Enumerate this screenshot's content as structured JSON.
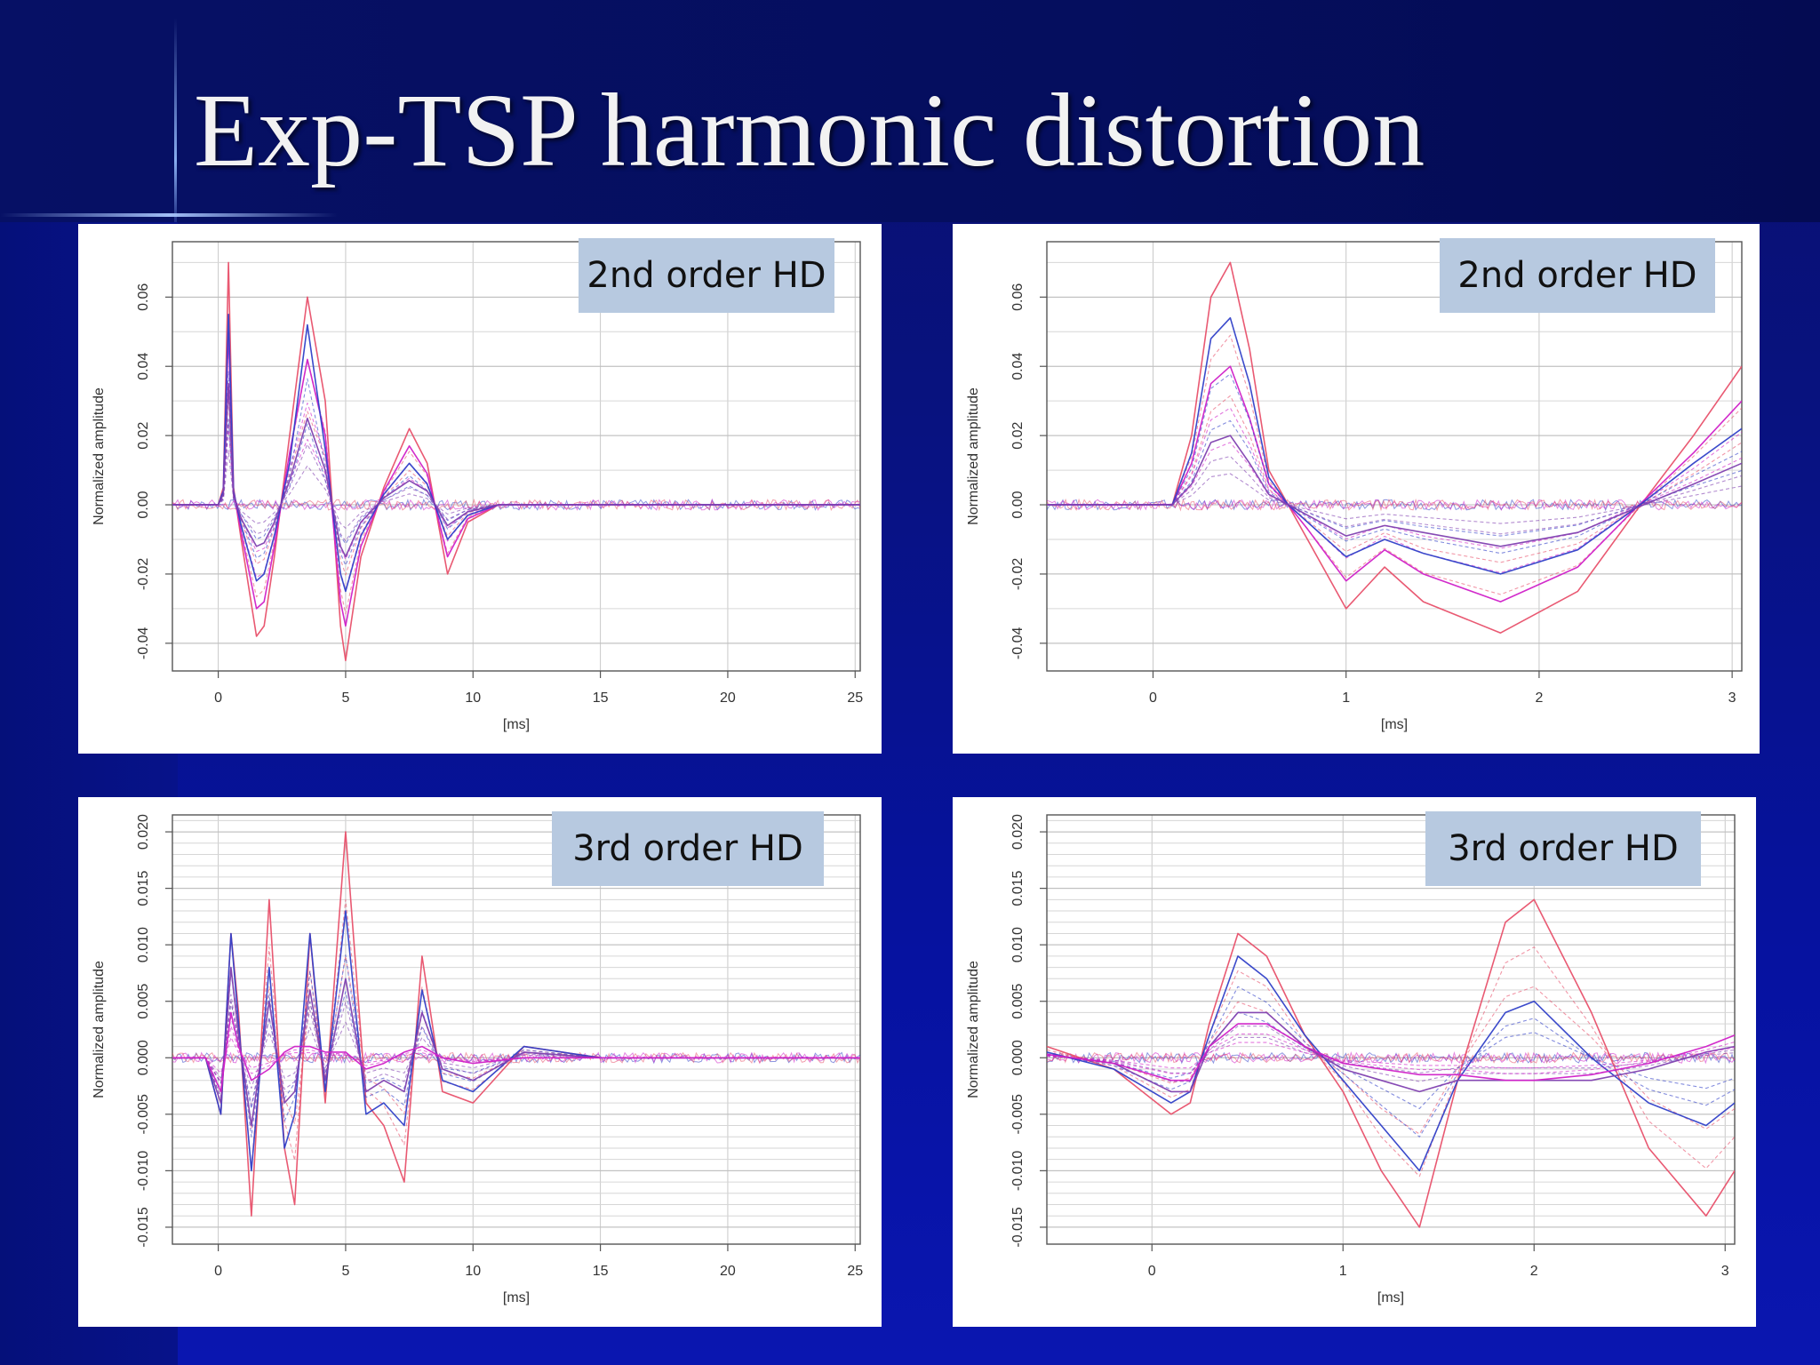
{
  "slide": {
    "title": "Exp-TSP harmonic distortion",
    "colors": {
      "background": "#0812a0",
      "title_text": "#f2f2f2",
      "badge": "#b7c9e0",
      "series_red": "#e8506a",
      "series_magenta": "#d020c8",
      "series_blue": "#3040c8",
      "series_purple": "#8040b0"
    }
  },
  "chart_data": [
    {
      "type": "line",
      "badge": "2nd order HD",
      "xlabel": "[ms]",
      "ylabel": "Normalized amplitude",
      "xlim": [
        -1.8,
        25.2
      ],
      "ylim": [
        -0.048,
        0.076
      ],
      "xticks": [
        0,
        5,
        10,
        15,
        20,
        25
      ],
      "yticks": [
        -0.04,
        -0.02,
        0.0,
        0.02,
        0.04,
        0.06
      ],
      "xtick_labels": [
        "0",
        "5",
        "10",
        "15",
        "20",
        "25"
      ],
      "ytick_labels": [
        "-0.04",
        "-0.02",
        "0.00",
        "0.02",
        "0.04",
        "0.06"
      ],
      "grid": true,
      "series": [
        {
          "color": "#e8506a",
          "x": [
            -1.8,
            0,
            0.2,
            0.4,
            0.6,
            0.9,
            1.5,
            1.8,
            2.2,
            2.8,
            3.5,
            4.2,
            4.8,
            5.0,
            5.6,
            6.5,
            7.5,
            8.2,
            9.0,
            9.8,
            11,
            25.2
          ],
          "y": [
            0,
            0,
            0.005,
            0.07,
            0.005,
            -0.01,
            -0.038,
            -0.035,
            -0.015,
            0.02,
            0.06,
            0.03,
            -0.035,
            -0.045,
            -0.015,
            0.005,
            0.022,
            0.012,
            -0.02,
            -0.005,
            0,
            0
          ]
        },
        {
          "color": "#d020c8",
          "x": [
            -1.8,
            0,
            0.2,
            0.4,
            0.6,
            0.9,
            1.5,
            1.8,
            2.2,
            2.8,
            3.5,
            4.2,
            4.8,
            5.0,
            5.6,
            6.5,
            7.5,
            8.2,
            9.0,
            9.8,
            11,
            25.2
          ],
          "y": [
            0,
            0,
            0.004,
            0.05,
            0.004,
            -0.008,
            -0.03,
            -0.028,
            -0.012,
            0.015,
            0.042,
            0.02,
            -0.028,
            -0.035,
            -0.012,
            0.004,
            0.017,
            0.009,
            -0.015,
            -0.004,
            0,
            0
          ]
        },
        {
          "color": "#3040c8",
          "x": [
            -1.8,
            0,
            0.2,
            0.4,
            0.6,
            0.9,
            1.5,
            1.8,
            2.2,
            2.8,
            3.5,
            4.2,
            4.8,
            5.0,
            5.6,
            6.5,
            7.5,
            8.2,
            9.0,
            9.8,
            11,
            25.2
          ],
          "y": [
            0,
            0,
            0.004,
            0.055,
            0.004,
            -0.006,
            -0.022,
            -0.02,
            -0.009,
            0.012,
            0.052,
            0.016,
            -0.02,
            -0.025,
            -0.009,
            0.003,
            0.012,
            0.006,
            -0.01,
            -0.003,
            0,
            0
          ]
        },
        {
          "color": "#8040b0",
          "x": [
            -1.8,
            0,
            0.2,
            0.4,
            0.6,
            0.9,
            1.5,
            1.8,
            2.2,
            2.8,
            3.5,
            4.2,
            4.8,
            5.0,
            5.6,
            6.5,
            7.5,
            8.2,
            9.0,
            9.8,
            11,
            25.2
          ],
          "y": [
            0,
            0,
            0.003,
            0.035,
            0.003,
            -0.004,
            -0.012,
            -0.011,
            -0.005,
            0.007,
            0.025,
            0.01,
            -0.012,
            -0.015,
            -0.005,
            0.002,
            0.007,
            0.004,
            -0.006,
            -0.002,
            0,
            0
          ]
        }
      ]
    },
    {
      "type": "line",
      "badge": "2nd order HD",
      "xlabel": "[ms]",
      "ylabel": "Normalized amplitude",
      "xlim": [
        -0.55,
        3.05
      ],
      "ylim": [
        -0.048,
        0.076
      ],
      "xticks": [
        0,
        1,
        2,
        3
      ],
      "yticks": [
        -0.04,
        -0.02,
        0.0,
        0.02,
        0.04,
        0.06
      ],
      "xtick_labels": [
        "0",
        "1",
        "2",
        "3"
      ],
      "ytick_labels": [
        "-0.04",
        "-0.02",
        "0.00",
        "0.02",
        "0.04",
        "0.06"
      ],
      "grid": true,
      "series": [
        {
          "color": "#e8506a",
          "x": [
            -0.55,
            0.1,
            0.2,
            0.3,
            0.4,
            0.5,
            0.6,
            0.7,
            0.8,
            1.0,
            1.2,
            1.4,
            1.8,
            2.2,
            2.5,
            2.8,
            3.05
          ],
          "y": [
            0,
            0,
            0.02,
            0.06,
            0.07,
            0.045,
            0.01,
            0,
            -0.01,
            -0.03,
            -0.018,
            -0.028,
            -0.037,
            -0.025,
            -0.002,
            0.02,
            0.04
          ]
        },
        {
          "color": "#d020c8",
          "x": [
            -0.55,
            0.1,
            0.2,
            0.3,
            0.4,
            0.5,
            0.6,
            0.7,
            0.8,
            1.0,
            1.2,
            1.4,
            1.8,
            2.2,
            2.5,
            2.8,
            3.05
          ],
          "y": [
            0,
            0,
            0.012,
            0.035,
            0.04,
            0.025,
            0.006,
            0,
            -0.007,
            -0.022,
            -0.013,
            -0.02,
            -0.028,
            -0.018,
            -0.001,
            0.015,
            0.03
          ]
        },
        {
          "color": "#3040c8",
          "x": [
            -0.55,
            0.1,
            0.2,
            0.3,
            0.4,
            0.5,
            0.6,
            0.7,
            0.8,
            1.0,
            1.2,
            1.4,
            1.8,
            2.2,
            2.5,
            2.8,
            3.05
          ],
          "y": [
            0,
            0,
            0.015,
            0.048,
            0.054,
            0.035,
            0.008,
            0,
            -0.005,
            -0.015,
            -0.01,
            -0.014,
            -0.02,
            -0.013,
            -0.001,
            0.012,
            0.022
          ]
        },
        {
          "color": "#8040b0",
          "x": [
            -0.55,
            0.1,
            0.2,
            0.3,
            0.4,
            0.5,
            0.6,
            0.7,
            0.8,
            1.0,
            1.2,
            1.4,
            1.8,
            2.2,
            2.5,
            2.8,
            3.05
          ],
          "y": [
            0,
            0,
            0.006,
            0.018,
            0.02,
            0.012,
            0.003,
            0,
            -0.003,
            -0.009,
            -0.006,
            -0.008,
            -0.012,
            -0.008,
            -0.001,
            0.006,
            0.012
          ]
        }
      ]
    },
    {
      "type": "line",
      "badge": "3rd order HD",
      "xlabel": "[ms]",
      "ylabel": "Normalized amplitude",
      "xlim": [
        -1.8,
        25.2
      ],
      "ylim": [
        -0.0165,
        0.0215
      ],
      "xticks": [
        0,
        5,
        10,
        15,
        20,
        25
      ],
      "yticks": [
        -0.015,
        -0.01,
        -0.005,
        0.0,
        0.005,
        0.01,
        0.015,
        0.02
      ],
      "xtick_labels": [
        "0",
        "5",
        "10",
        "15",
        "20",
        "25"
      ],
      "ytick_labels": [
        "-0.015",
        "-0.010",
        "-0.005",
        "0.000",
        "0.005",
        "0.010",
        "0.015",
        "0.020"
      ],
      "grid": true,
      "series": [
        {
          "color": "#e8506a",
          "x": [
            -1.8,
            -0.5,
            0.1,
            0.5,
            0.8,
            1.3,
            2.0,
            2.6,
            3.0,
            3.6,
            4.2,
            5.0,
            5.8,
            6.5,
            7.3,
            8.0,
            8.8,
            10,
            12,
            15,
            25.2
          ],
          "y": [
            0,
            0,
            -0.005,
            0.011,
            0.004,
            -0.014,
            0.014,
            -0.008,
            -0.013,
            0.011,
            -0.004,
            0.02,
            -0.004,
            -0.006,
            -0.011,
            0.009,
            -0.003,
            -0.004,
            0.001,
            0,
            0
          ]
        },
        {
          "color": "#3040c8",
          "x": [
            -1.8,
            -0.5,
            0.1,
            0.5,
            0.8,
            1.3,
            2.0,
            2.6,
            3.0,
            3.6,
            4.2,
            5.0,
            5.8,
            6.5,
            7.3,
            8.0,
            8.8,
            10,
            12,
            15,
            25.2
          ],
          "y": [
            0,
            0,
            -0.005,
            0.011,
            0.003,
            -0.01,
            0.008,
            -0.008,
            -0.005,
            0.011,
            -0.003,
            0.013,
            -0.005,
            -0.004,
            -0.006,
            0.006,
            -0.002,
            -0.003,
            0.001,
            0,
            0
          ]
        },
        {
          "color": "#8040b0",
          "x": [
            -1.8,
            -0.5,
            0.1,
            0.5,
            0.8,
            1.3,
            2.0,
            2.6,
            3.0,
            3.6,
            4.2,
            5.0,
            5.8,
            6.5,
            7.3,
            8.0,
            8.8,
            10,
            12,
            15,
            25.2
          ],
          "y": [
            0,
            0,
            -0.004,
            0.008,
            0.002,
            -0.006,
            0.005,
            -0.004,
            -0.003,
            0.006,
            -0.002,
            0.007,
            -0.003,
            -0.002,
            -0.003,
            0.004,
            -0.001,
            -0.002,
            0.0005,
            0,
            0
          ]
        },
        {
          "color": "#d020c8",
          "x": [
            -1.8,
            -0.5,
            0.1,
            0.5,
            0.8,
            1.3,
            2.0,
            2.6,
            3.0,
            3.6,
            4.2,
            5.0,
            5.8,
            6.5,
            7.3,
            8.0,
            8.8,
            10,
            12,
            15,
            25.2
          ],
          "y": [
            0,
            0,
            -0.003,
            0.004,
            0.001,
            -0.002,
            -0.001,
            0.0005,
            0.001,
            0.001,
            0.0005,
            0.0005,
            -0.001,
            -0.0005,
            0.0005,
            0.001,
            0,
            -0.0005,
            0,
            0,
            0
          ]
        }
      ]
    },
    {
      "type": "line",
      "badge": "3rd order HD",
      "xlabel": "[ms]",
      "ylabel": "Normalized amplitude",
      "xlim": [
        -0.55,
        3.05
      ],
      "ylim": [
        -0.0165,
        0.0215
      ],
      "xticks": [
        0,
        1,
        2,
        3
      ],
      "yticks": [
        -0.015,
        -0.01,
        -0.005,
        0.0,
        0.005,
        0.01,
        0.015,
        0.02
      ],
      "xtick_labels": [
        "0",
        "1",
        "2",
        "3"
      ],
      "ytick_labels": [
        "-0.015",
        "-0.010",
        "-0.005",
        "0.000",
        "0.005",
        "0.010",
        "0.015",
        "0.020"
      ],
      "grid": true,
      "series": [
        {
          "color": "#e8506a",
          "x": [
            -0.55,
            -0.2,
            0.1,
            0.2,
            0.3,
            0.45,
            0.6,
            0.8,
            1.0,
            1.2,
            1.4,
            1.6,
            1.85,
            2.0,
            2.3,
            2.6,
            2.9,
            3.05
          ],
          "y": [
            0.001,
            -0.001,
            -0.005,
            -0.004,
            0.003,
            0.011,
            0.009,
            0.002,
            -0.003,
            -0.01,
            -0.015,
            -0.002,
            0.012,
            0.014,
            0.004,
            -0.008,
            -0.014,
            -0.01
          ]
        },
        {
          "color": "#3040c8",
          "x": [
            -0.55,
            -0.2,
            0.1,
            0.2,
            0.3,
            0.45,
            0.6,
            0.8,
            1.0,
            1.2,
            1.4,
            1.6,
            1.85,
            2.0,
            2.3,
            2.6,
            2.9,
            3.05
          ],
          "y": [
            0.0005,
            -0.001,
            -0.004,
            -0.003,
            0.002,
            0.009,
            0.007,
            0.002,
            -0.002,
            -0.006,
            -0.01,
            -0.002,
            0.004,
            0.005,
            0.0,
            -0.004,
            -0.006,
            -0.004
          ]
        },
        {
          "color": "#8040b0",
          "x": [
            -0.55,
            -0.2,
            0.1,
            0.2,
            0.3,
            0.45,
            0.6,
            0.8,
            1.0,
            1.2,
            1.4,
            1.6,
            1.85,
            2.0,
            2.3,
            2.6,
            2.9,
            3.05
          ],
          "y": [
            0.0003,
            -0.0005,
            -0.003,
            -0.003,
            0.001,
            0.004,
            0.004,
            0.001,
            -0.001,
            -0.002,
            -0.003,
            -0.002,
            -0.002,
            -0.002,
            -0.002,
            -0.001,
            0.0005,
            0.001
          ]
        },
        {
          "color": "#d020c8",
          "x": [
            -0.55,
            -0.2,
            0.1,
            0.2,
            0.3,
            0.45,
            0.6,
            0.8,
            1.0,
            1.2,
            1.4,
            1.6,
            1.85,
            2.0,
            2.3,
            2.6,
            2.9,
            3.05
          ],
          "y": [
            0.0003,
            -0.0005,
            -0.002,
            -0.002,
            0.001,
            0.003,
            0.003,
            0.001,
            -0.0005,
            -0.001,
            -0.0015,
            -0.0015,
            -0.002,
            -0.002,
            -0.0015,
            -0.0005,
            0.001,
            0.002
          ]
        }
      ]
    }
  ]
}
